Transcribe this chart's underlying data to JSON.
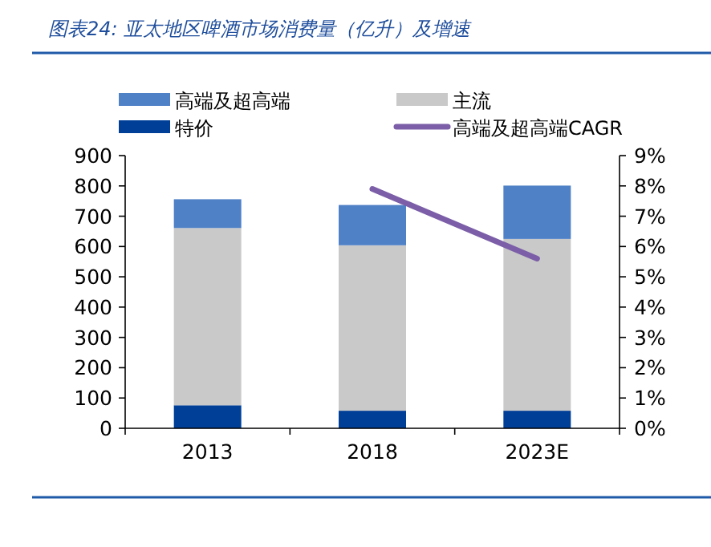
{
  "chart_data": {
    "type": "bar",
    "title": "图表24:  亚太地区啤酒市场消费量（亿升）及增速",
    "categories": [
      "2013",
      "2018",
      "2023E"
    ],
    "stacked": true,
    "legend": "top",
    "series": [
      {
        "name": "特价",
        "color": "#003f98",
        "values": [
          76,
          58,
          58
        ]
      },
      {
        "name": "主流",
        "color": "#c9c9c9",
        "values": [
          585,
          546,
          567
        ]
      },
      {
        "name": "高端及超高端",
        "color": "#4f81c7",
        "values": [
          95,
          133,
          176
        ]
      },
      {
        "name": "高端及超高端CAGR",
        "type": "line",
        "axis": "y2",
        "color": "#7b5ea7",
        "values": [
          null,
          0.079,
          0.056
        ]
      }
    ],
    "ylim": [
      0,
      900
    ],
    "yticks": [
      0,
      100,
      200,
      300,
      400,
      500,
      600,
      700,
      800,
      900
    ],
    "y2lim": [
      0,
      0.09
    ],
    "y2ticks": [
      {
        "value": 0,
        "label": "0%"
      },
      {
        "value": 0.01,
        "label": "1%"
      },
      {
        "value": 0.02,
        "label": "2%"
      },
      {
        "value": 0.03,
        "label": "3%"
      },
      {
        "value": 0.04,
        "label": "4%"
      },
      {
        "value": 0.05,
        "label": "5%"
      },
      {
        "value": 0.06,
        "label": "6%"
      },
      {
        "value": 0.07,
        "label": "7%"
      },
      {
        "value": 0.08,
        "label": "8%"
      },
      {
        "value": 0.09,
        "label": "9%"
      }
    ]
  }
}
